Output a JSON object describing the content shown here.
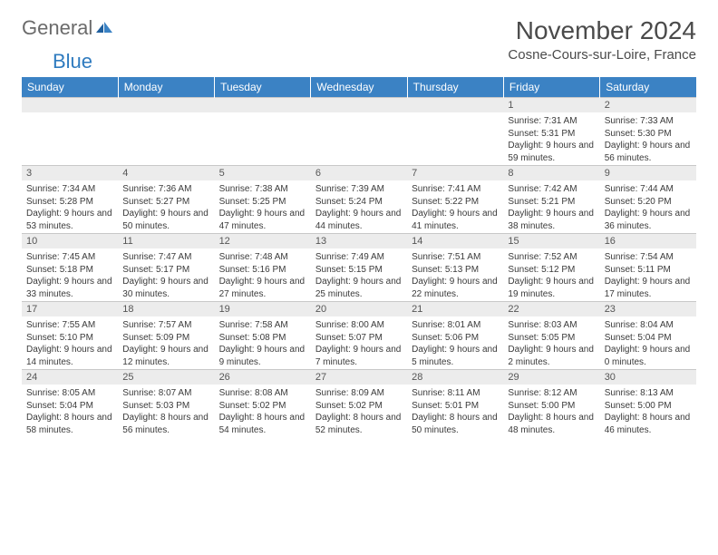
{
  "logo": {
    "general": "General",
    "blue": "Blue"
  },
  "title": "November 2024",
  "location": "Cosne-Cours-sur-Loire, France",
  "colors": {
    "header_bg": "#3b82c4",
    "header_fg": "#ffffff",
    "daynum_bg": "#ececec",
    "text": "#3a3a3a",
    "logo_gray": "#6b6b6b",
    "logo_blue": "#2f7bbf",
    "rule": "#c8c8c8"
  },
  "weekdays": [
    "Sunday",
    "Monday",
    "Tuesday",
    "Wednesday",
    "Thursday",
    "Friday",
    "Saturday"
  ],
  "weeks": [
    [
      {
        "blank": true
      },
      {
        "blank": true
      },
      {
        "blank": true
      },
      {
        "blank": true
      },
      {
        "blank": true
      },
      {
        "n": "1",
        "sr": "Sunrise: 7:31 AM",
        "ss": "Sunset: 5:31 PM",
        "dl": "Daylight: 9 hours and 59 minutes."
      },
      {
        "n": "2",
        "sr": "Sunrise: 7:33 AM",
        "ss": "Sunset: 5:30 PM",
        "dl": "Daylight: 9 hours and 56 minutes."
      }
    ],
    [
      {
        "n": "3",
        "sr": "Sunrise: 7:34 AM",
        "ss": "Sunset: 5:28 PM",
        "dl": "Daylight: 9 hours and 53 minutes."
      },
      {
        "n": "4",
        "sr": "Sunrise: 7:36 AM",
        "ss": "Sunset: 5:27 PM",
        "dl": "Daylight: 9 hours and 50 minutes."
      },
      {
        "n": "5",
        "sr": "Sunrise: 7:38 AM",
        "ss": "Sunset: 5:25 PM",
        "dl": "Daylight: 9 hours and 47 minutes."
      },
      {
        "n": "6",
        "sr": "Sunrise: 7:39 AM",
        "ss": "Sunset: 5:24 PM",
        "dl": "Daylight: 9 hours and 44 minutes."
      },
      {
        "n": "7",
        "sr": "Sunrise: 7:41 AM",
        "ss": "Sunset: 5:22 PM",
        "dl": "Daylight: 9 hours and 41 minutes."
      },
      {
        "n": "8",
        "sr": "Sunrise: 7:42 AM",
        "ss": "Sunset: 5:21 PM",
        "dl": "Daylight: 9 hours and 38 minutes."
      },
      {
        "n": "9",
        "sr": "Sunrise: 7:44 AM",
        "ss": "Sunset: 5:20 PM",
        "dl": "Daylight: 9 hours and 36 minutes."
      }
    ],
    [
      {
        "n": "10",
        "sr": "Sunrise: 7:45 AM",
        "ss": "Sunset: 5:18 PM",
        "dl": "Daylight: 9 hours and 33 minutes."
      },
      {
        "n": "11",
        "sr": "Sunrise: 7:47 AM",
        "ss": "Sunset: 5:17 PM",
        "dl": "Daylight: 9 hours and 30 minutes."
      },
      {
        "n": "12",
        "sr": "Sunrise: 7:48 AM",
        "ss": "Sunset: 5:16 PM",
        "dl": "Daylight: 9 hours and 27 minutes."
      },
      {
        "n": "13",
        "sr": "Sunrise: 7:49 AM",
        "ss": "Sunset: 5:15 PM",
        "dl": "Daylight: 9 hours and 25 minutes."
      },
      {
        "n": "14",
        "sr": "Sunrise: 7:51 AM",
        "ss": "Sunset: 5:13 PM",
        "dl": "Daylight: 9 hours and 22 minutes."
      },
      {
        "n": "15",
        "sr": "Sunrise: 7:52 AM",
        "ss": "Sunset: 5:12 PM",
        "dl": "Daylight: 9 hours and 19 minutes."
      },
      {
        "n": "16",
        "sr": "Sunrise: 7:54 AM",
        "ss": "Sunset: 5:11 PM",
        "dl": "Daylight: 9 hours and 17 minutes."
      }
    ],
    [
      {
        "n": "17",
        "sr": "Sunrise: 7:55 AM",
        "ss": "Sunset: 5:10 PM",
        "dl": "Daylight: 9 hours and 14 minutes."
      },
      {
        "n": "18",
        "sr": "Sunrise: 7:57 AM",
        "ss": "Sunset: 5:09 PM",
        "dl": "Daylight: 9 hours and 12 minutes."
      },
      {
        "n": "19",
        "sr": "Sunrise: 7:58 AM",
        "ss": "Sunset: 5:08 PM",
        "dl": "Daylight: 9 hours and 9 minutes."
      },
      {
        "n": "20",
        "sr": "Sunrise: 8:00 AM",
        "ss": "Sunset: 5:07 PM",
        "dl": "Daylight: 9 hours and 7 minutes."
      },
      {
        "n": "21",
        "sr": "Sunrise: 8:01 AM",
        "ss": "Sunset: 5:06 PM",
        "dl": "Daylight: 9 hours and 5 minutes."
      },
      {
        "n": "22",
        "sr": "Sunrise: 8:03 AM",
        "ss": "Sunset: 5:05 PM",
        "dl": "Daylight: 9 hours and 2 minutes."
      },
      {
        "n": "23",
        "sr": "Sunrise: 8:04 AM",
        "ss": "Sunset: 5:04 PM",
        "dl": "Daylight: 9 hours and 0 minutes."
      }
    ],
    [
      {
        "n": "24",
        "sr": "Sunrise: 8:05 AM",
        "ss": "Sunset: 5:04 PM",
        "dl": "Daylight: 8 hours and 58 minutes."
      },
      {
        "n": "25",
        "sr": "Sunrise: 8:07 AM",
        "ss": "Sunset: 5:03 PM",
        "dl": "Daylight: 8 hours and 56 minutes."
      },
      {
        "n": "26",
        "sr": "Sunrise: 8:08 AM",
        "ss": "Sunset: 5:02 PM",
        "dl": "Daylight: 8 hours and 54 minutes."
      },
      {
        "n": "27",
        "sr": "Sunrise: 8:09 AM",
        "ss": "Sunset: 5:02 PM",
        "dl": "Daylight: 8 hours and 52 minutes."
      },
      {
        "n": "28",
        "sr": "Sunrise: 8:11 AM",
        "ss": "Sunset: 5:01 PM",
        "dl": "Daylight: 8 hours and 50 minutes."
      },
      {
        "n": "29",
        "sr": "Sunrise: 8:12 AM",
        "ss": "Sunset: 5:00 PM",
        "dl": "Daylight: 8 hours and 48 minutes."
      },
      {
        "n": "30",
        "sr": "Sunrise: 8:13 AM",
        "ss": "Sunset: 5:00 PM",
        "dl": "Daylight: 8 hours and 46 minutes."
      }
    ]
  ]
}
